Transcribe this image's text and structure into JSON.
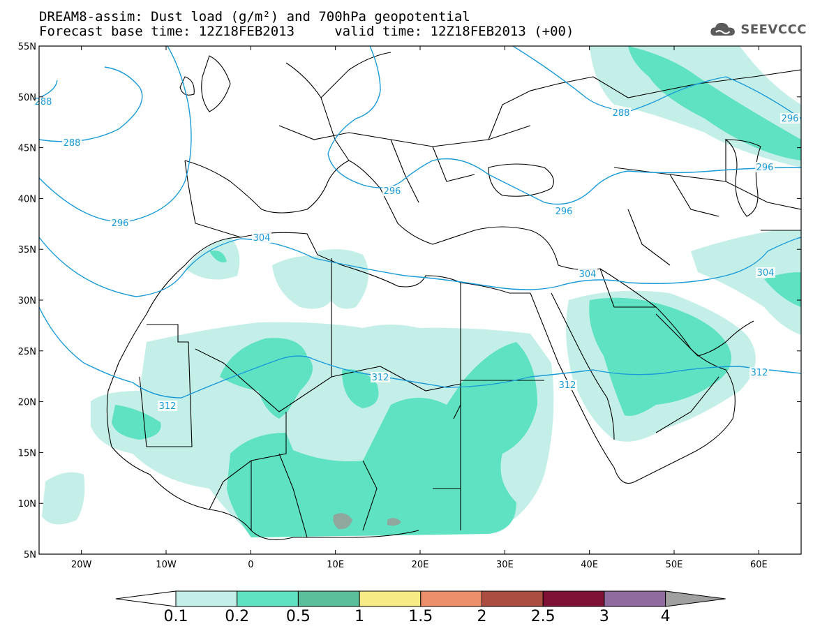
{
  "header": {
    "title_line1": "DREAM8-assim: Dust load (g/m²) and 700hPa geopotential",
    "title_line2": "Forecast base time: 12Z18FEB2013     valid time: 12Z18FEB2013 (+00)"
  },
  "logo": {
    "text": "SEEVCCC",
    "icon": "cloud-logo-icon",
    "color": "#5b5b5b"
  },
  "map": {
    "lat_labels": [
      "55N",
      "50N",
      "45N",
      "40N",
      "35N",
      "30N",
      "25N",
      "20N",
      "15N",
      "10N",
      "5N"
    ],
    "lon_labels": [
      "20W",
      "10W",
      "0",
      "10E",
      "20E",
      "30E",
      "40E",
      "50E",
      "60E"
    ],
    "contour_color": "#1a9bd9",
    "contour_labels": [
      "288",
      "296",
      "304",
      "312"
    ]
  },
  "colorbar": {
    "labels": [
      "0.1",
      "0.2",
      "0.5",
      "1",
      "1.5",
      "2",
      "2.5",
      "3",
      "4"
    ],
    "colors": [
      "#ffffff",
      "#c4efe8",
      "#5fe2c1",
      "#5cbf9c",
      "#f6eb85",
      "#ec8f6a",
      "#ab4d3f",
      "#7e1135",
      "#8e6a9e",
      "#a0a0a0"
    ]
  },
  "dust_colors": {
    "c1": "#c4efe8",
    "c2": "#5fe2c1",
    "c3": "#5cbf9c",
    "c4": "#8fa79d"
  }
}
